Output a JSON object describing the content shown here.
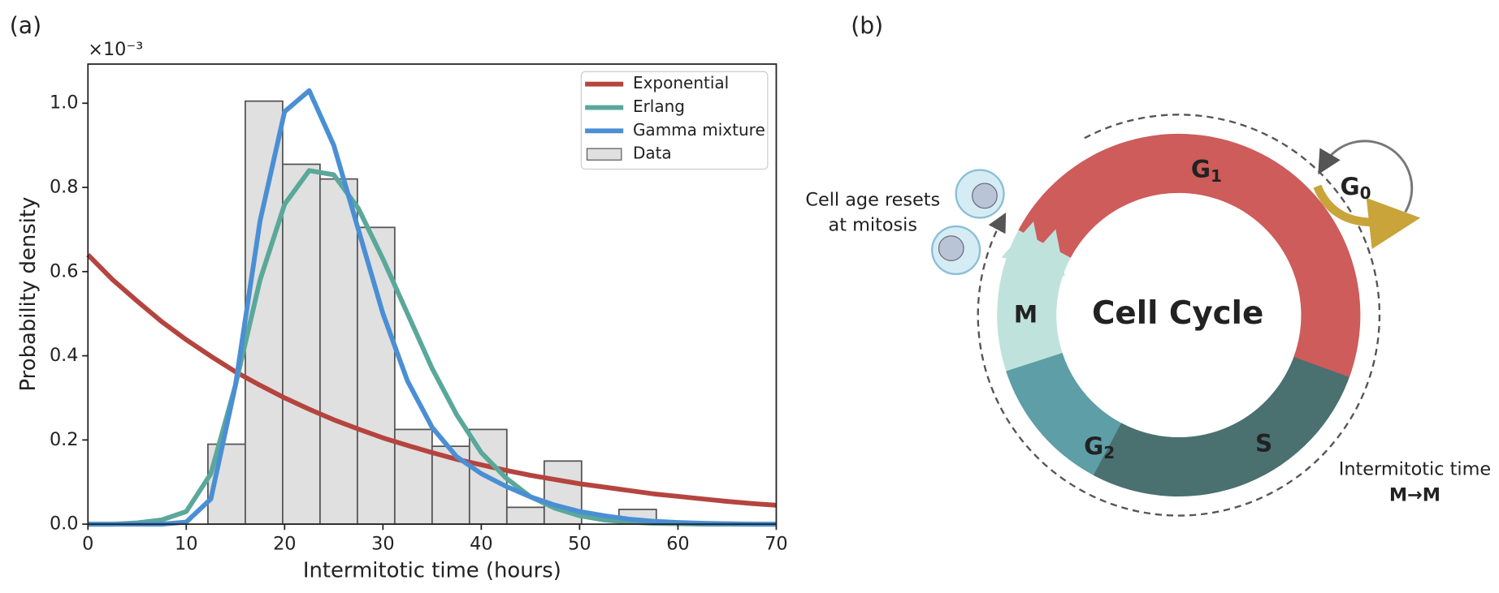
{
  "chart_data": {
    "type": "histogram",
    "panel_label": "(a)",
    "xlabel": "Intermitotic time (hours)",
    "ylabel": "Probability density",
    "annotation": "×10⁻³",
    "xlim": [
      0,
      70
    ],
    "ylim": [
      0,
      1.093
    ],
    "xticks": [
      0,
      10,
      20,
      30,
      40,
      50,
      60,
      70
    ],
    "yticks": [
      {
        "value": 0,
        "label": "0.0"
      },
      0.2,
      0.4,
      0.6,
      0.8,
      {
        "value": 1,
        "label": "1.0"
      }
    ],
    "legend": "upper right",
    "histogram": {
      "name": "Data",
      "color": "#e0e0e0",
      "bins": [
        12.2,
        16.0,
        19.8,
        23.6,
        27.4,
        31.2,
        35.0,
        38.8,
        42.6,
        46.4,
        50.2,
        54.0,
        57.8
      ],
      "values": [
        0.19,
        1.005,
        0.855,
        0.82,
        0.705,
        0.225,
        0.185,
        0.225,
        0.04,
        0.15,
        0,
        0.035
      ]
    },
    "x": [
      0,
      2.5,
      5,
      7.5,
      10,
      12.5,
      15,
      17.5,
      20,
      22.5,
      25,
      27.5,
      30,
      32.5,
      35,
      37.5,
      40,
      42.5,
      45,
      47.5,
      50,
      52.5,
      55,
      57.5,
      60,
      62.5,
      65,
      67.5,
      70
    ],
    "series": [
      {
        "name": "Exponential",
        "color": "#b5443f",
        "values": [
          0.64,
          0.581,
          0.53,
          0.481,
          0.438,
          0.399,
          0.362,
          0.33,
          0.3,
          0.273,
          0.248,
          0.226,
          0.205,
          0.187,
          0.17,
          0.154,
          0.141,
          0.128,
          0.116,
          0.106,
          0.096,
          0.088,
          0.08,
          0.072,
          0.066,
          0.06,
          0.054,
          0.049,
          0.045
        ]
      },
      {
        "name": "Erlang",
        "color": "#5aa89a",
        "values": [
          0,
          0,
          0.003,
          0.01,
          0.03,
          0.12,
          0.33,
          0.58,
          0.76,
          0.84,
          0.83,
          0.75,
          0.63,
          0.5,
          0.37,
          0.26,
          0.17,
          0.11,
          0.065,
          0.038,
          0.02,
          0.01,
          0.005,
          0.002,
          0.001,
          0,
          0,
          0,
          0
        ]
      },
      {
        "name": "Gamma mixture",
        "color": "#4a8fd4",
        "values": [
          0,
          0,
          0,
          0,
          0.005,
          0.06,
          0.33,
          0.72,
          0.98,
          1.03,
          0.9,
          0.7,
          0.5,
          0.34,
          0.23,
          0.16,
          0.12,
          0.09,
          0.065,
          0.045,
          0.03,
          0.02,
          0.012,
          0.007,
          0.004,
          0.002,
          0.001,
          0,
          0
        ]
      }
    ]
  },
  "diagram": {
    "panel_label": "(b)",
    "title": "Cell Cycle",
    "reset_note": [
      "Cell age resets",
      "at mitosis"
    ],
    "phases": [
      {
        "text": "G",
        "sub": "1"
      },
      {
        "text": "G",
        "sub": "0"
      },
      {
        "text": "M"
      },
      {
        "text": "G",
        "sub": "2"
      },
      {
        "text": "S"
      }
    ],
    "interval": [
      "Intermitotic time",
      "M→M"
    ]
  }
}
